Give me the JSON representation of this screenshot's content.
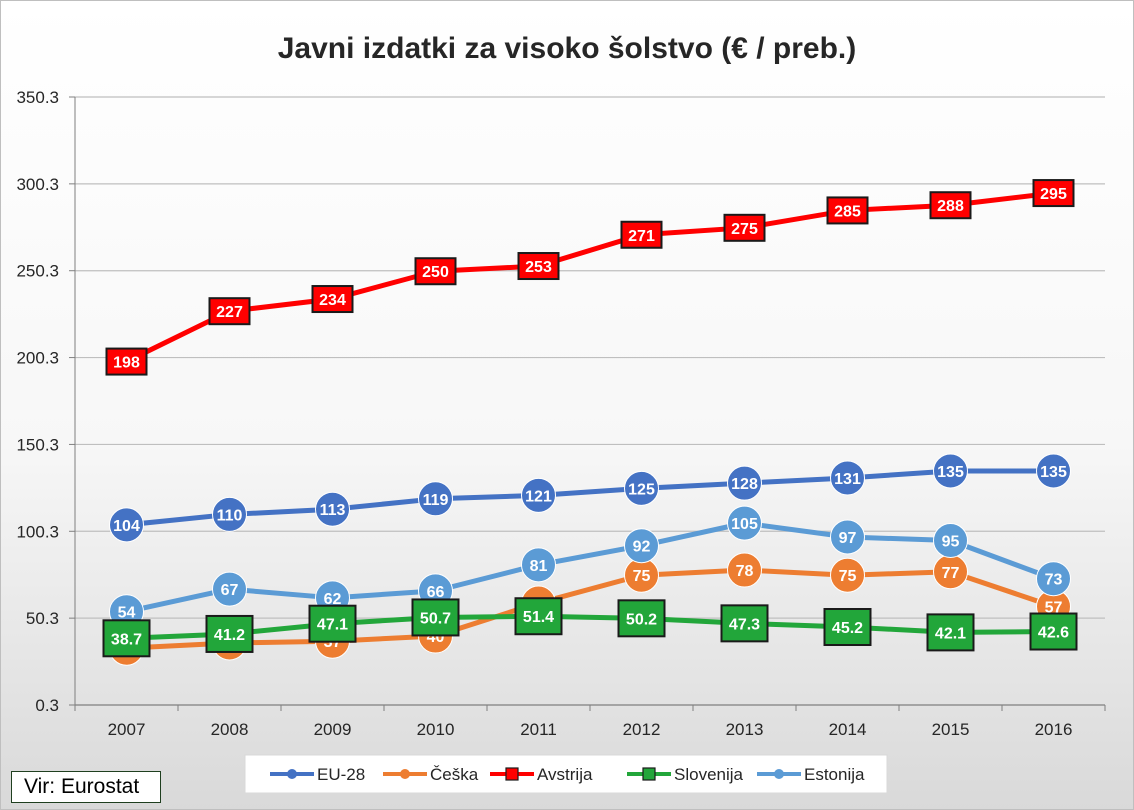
{
  "chart_data": {
    "type": "line",
    "title": "Javni izdatki za visoko šolstvo (€ / preb.)",
    "xlabel": "",
    "ylabel": "",
    "categories": [
      "2007",
      "2008",
      "2009",
      "2010",
      "2011",
      "2012",
      "2013",
      "2014",
      "2015",
      "2016"
    ],
    "ylim": [
      0.3,
      350.3
    ],
    "yticks": [
      0.3,
      50.3,
      100.3,
      150.3,
      200.3,
      250.3,
      300.3,
      350.3
    ],
    "ytick_labels": [
      "0.3",
      "50.3",
      "100.3",
      "150.3",
      "200.3",
      "250.3",
      "300.3",
      "350.3"
    ],
    "grid": true,
    "legend_position": "bottom",
    "series": [
      {
        "name": "EU-28",
        "color": "#4472c4",
        "marker": "circle",
        "labels": [
          "104",
          "110",
          "113",
          "119",
          "121",
          "125",
          "128",
          "131",
          "135",
          "135"
        ],
        "values": [
          104,
          110,
          113,
          119,
          121,
          125,
          128,
          131,
          135,
          135
        ]
      },
      {
        "name": "Češka",
        "color": "#ed7d31",
        "marker": "circle",
        "labels": [
          "33",
          "36",
          "37",
          "40",
          "59",
          "75",
          "78",
          "75",
          "77",
          "57"
        ],
        "values": [
          33,
          36,
          37,
          40,
          59,
          75,
          78,
          75,
          77,
          57
        ]
      },
      {
        "name": "Avstrija",
        "color": "#ff0000",
        "marker": "square",
        "labels": [
          "198",
          "227",
          "234",
          "250",
          "253",
          "271",
          "275",
          "285",
          "288",
          "295"
        ],
        "values": [
          198,
          227,
          234,
          250,
          253,
          271,
          275,
          285,
          288,
          295
        ]
      },
      {
        "name": "Slovenija",
        "color": "#22a63a",
        "marker": "square",
        "labels": [
          "38.7",
          "41.2",
          "47.1",
          "50.7",
          "51.4",
          "50.2",
          "47.3",
          "45.2",
          "42.1",
          "42.6"
        ],
        "values": [
          38.7,
          41.2,
          47.1,
          50.7,
          51.4,
          50.2,
          47.3,
          45.2,
          42.1,
          42.6
        ]
      },
      {
        "name": "Estonija",
        "color": "#5b9bd5",
        "marker": "circle",
        "labels": [
          "54",
          "67",
          "62",
          "66",
          "81",
          "92",
          "105",
          "97",
          "95",
          "73"
        ],
        "values": [
          54,
          67,
          62,
          66,
          81,
          92,
          105,
          97,
          95,
          73
        ]
      }
    ]
  },
  "source": {
    "label": "Vir: Eurostat"
  }
}
